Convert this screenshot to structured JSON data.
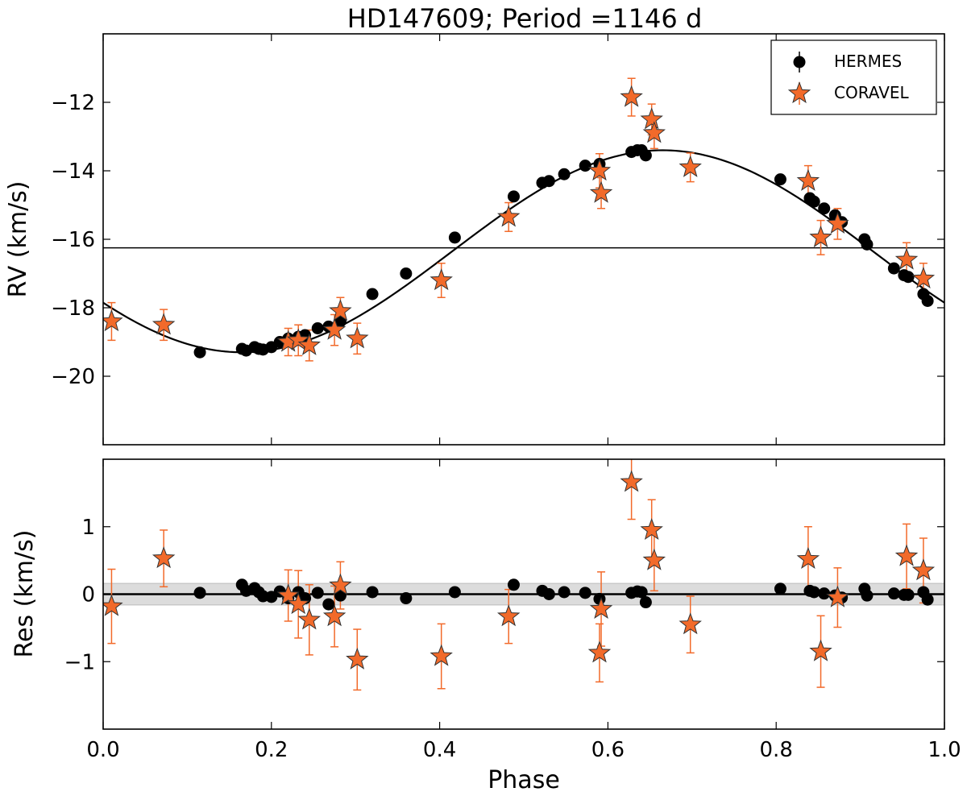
{
  "chart_data": [
    {
      "type": "scatter",
      "panel": "top",
      "title": "HD147609; Period =1146 d",
      "xlabel": "",
      "ylabel": "RV (km/s)",
      "xlim": [
        0.0,
        1.0
      ],
      "ylim": [
        -22.0,
        -10.0
      ],
      "yticks": [
        -20,
        -18,
        -16,
        -14,
        -12
      ],
      "ytick_labels": [
        "−20",
        "−18",
        "−16",
        "−14",
        "−12"
      ],
      "xticks": [
        0.0,
        0.2,
        0.4,
        0.6,
        0.8,
        1.0
      ],
      "grid": false,
      "legend": {
        "placement": "top-right",
        "entries": [
          "HERMES",
          "CORAVEL"
        ]
      },
      "systemic_velocity": -16.25,
      "fit_model": {
        "gamma": -16.35,
        "amplitude": 2.95,
        "phase_max": 0.665
      },
      "series": [
        {
          "name": "HERMES",
          "marker": "circle",
          "color": "#000000",
          "x": [
            0.115,
            0.165,
            0.17,
            0.18,
            0.185,
            0.19,
            0.2,
            0.21,
            0.22,
            0.232,
            0.24,
            0.255,
            0.268,
            0.282,
            0.32,
            0.36,
            0.418,
            0.488,
            0.522,
            0.53,
            0.548,
            0.573,
            0.59,
            0.628,
            0.635,
            0.64,
            0.645,
            0.805,
            0.84,
            0.845,
            0.857,
            0.87,
            0.878,
            0.905,
            0.908,
            0.94,
            0.952,
            0.957,
            0.975,
            0.98
          ],
          "y": [
            -19.3,
            -19.2,
            -19.25,
            -19.15,
            -19.2,
            -19.22,
            -19.15,
            -19.0,
            -18.9,
            -18.85,
            -18.8,
            -18.6,
            -18.55,
            -18.4,
            -17.6,
            -17.0,
            -15.95,
            -14.75,
            -14.35,
            -14.3,
            -14.1,
            -13.85,
            -13.8,
            -13.45,
            -13.4,
            -13.4,
            -13.55,
            -14.25,
            -14.8,
            -14.9,
            -15.1,
            -15.3,
            -15.5,
            -16.0,
            -16.15,
            -16.85,
            -17.05,
            -17.1,
            -17.6,
            -17.8
          ]
        },
        {
          "name": "CORAVEL",
          "marker": "star",
          "color": "#f26a2a",
          "x": [
            0.01,
            0.072,
            0.22,
            0.232,
            0.245,
            0.275,
            0.282,
            0.302,
            0.402,
            0.482,
            0.59,
            0.592,
            0.628,
            0.652,
            0.655,
            0.698,
            0.838,
            0.853,
            0.873,
            0.955,
            0.975
          ],
          "y": [
            -18.4,
            -18.5,
            -19.0,
            -18.95,
            -19.1,
            -18.65,
            -18.1,
            -18.9,
            -17.2,
            -15.35,
            -14.0,
            -14.65,
            -11.85,
            -12.5,
            -12.9,
            -13.9,
            -14.3,
            -15.95,
            -15.55,
            -16.6,
            -17.15
          ],
          "yerr": [
            0.55,
            0.45,
            0.4,
            0.45,
            0.45,
            0.45,
            0.4,
            0.45,
            0.5,
            0.42,
            0.5,
            0.45,
            0.55,
            0.45,
            0.45,
            0.42,
            0.45,
            0.5,
            0.45,
            0.5,
            0.45
          ]
        }
      ]
    },
    {
      "type": "scatter",
      "panel": "bottom",
      "title": "",
      "xlabel": "Phase",
      "ylabel": "Res (km/s)",
      "xlim": [
        0.0,
        1.0
      ],
      "ylim": [
        -2.0,
        2.0
      ],
      "yticks": [
        -1,
        0,
        1
      ],
      "ytick_labels": [
        "−1",
        "0",
        "1"
      ],
      "xticks": [
        0.0,
        0.2,
        0.4,
        0.6,
        0.8,
        1.0
      ],
      "xtick_labels": [
        "0.0",
        "0.2",
        "0.4",
        "0.6",
        "0.8",
        "1.0"
      ],
      "grid": false,
      "zero_line": 0,
      "shaded_band": [
        -0.16,
        0.16
      ],
      "series": [
        {
          "name": "HERMES",
          "marker": "circle",
          "color": "#000000",
          "x": [
            0.115,
            0.165,
            0.17,
            0.18,
            0.185,
            0.19,
            0.2,
            0.21,
            0.22,
            0.232,
            0.24,
            0.255,
            0.268,
            0.282,
            0.32,
            0.36,
            0.418,
            0.488,
            0.522,
            0.53,
            0.548,
            0.573,
            0.59,
            0.628,
            0.635,
            0.64,
            0.645,
            0.805,
            0.84,
            0.845,
            0.857,
            0.87,
            0.878,
            0.905,
            0.908,
            0.94,
            0.952,
            0.957,
            0.975,
            0.98
          ],
          "y": [
            0.02,
            0.14,
            0.05,
            0.09,
            0.03,
            -0.03,
            -0.04,
            0.04,
            -0.06,
            0.03,
            -0.06,
            0.02,
            -0.15,
            -0.02,
            0.03,
            -0.06,
            0.03,
            0.14,
            0.05,
            0.0,
            0.03,
            0.02,
            -0.07,
            0.02,
            0.04,
            0.03,
            -0.12,
            0.08,
            0.05,
            0.03,
            0.01,
            -0.02,
            -0.05,
            0.08,
            -0.02,
            0.01,
            -0.01,
            -0.01,
            0.03,
            -0.08
          ]
        },
        {
          "name": "CORAVEL",
          "marker": "star",
          "color": "#f26a2a",
          "x": [
            0.01,
            0.072,
            0.22,
            0.232,
            0.245,
            0.275,
            0.282,
            0.302,
            0.402,
            0.482,
            0.59,
            0.592,
            0.628,
            0.652,
            0.655,
            0.698,
            0.838,
            0.853,
            0.873,
            0.955,
            0.975
          ],
          "y": [
            -0.18,
            0.53,
            -0.02,
            -0.15,
            -0.38,
            -0.33,
            0.13,
            -0.97,
            -0.92,
            -0.33,
            -0.87,
            -0.22,
            1.66,
            0.95,
            0.5,
            -0.45,
            0.52,
            -0.85,
            -0.05,
            0.56,
            0.35
          ],
          "yerr": [
            0.55,
            0.42,
            0.38,
            0.5,
            0.52,
            0.45,
            0.35,
            0.45,
            0.48,
            0.4,
            0.43,
            0.55,
            0.55,
            0.45,
            0.45,
            0.42,
            0.48,
            0.53,
            0.44,
            0.48,
            0.48
          ]
        }
      ]
    }
  ]
}
